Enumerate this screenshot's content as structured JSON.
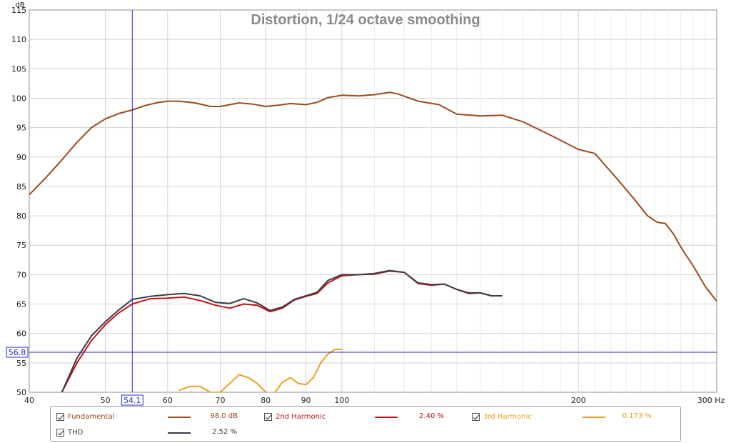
{
  "chart_data": {
    "type": "line",
    "title": "Distortion, 1/24 octave smoothing",
    "xlabel": "Hz",
    "ylabel": "dB",
    "xscale": "log",
    "xlim": [
      40,
      300
    ],
    "ylim": [
      50,
      115
    ],
    "x_ticks": [
      40,
      50,
      60,
      70,
      80,
      90,
      100,
      200,
      300
    ],
    "x_tick_labels": [
      "40",
      "50",
      "60",
      "70",
      "80",
      "90",
      "100",
      "200",
      "300 Hz"
    ],
    "y_ticks": [
      50,
      55,
      60,
      65,
      70,
      75,
      80,
      85,
      90,
      95,
      100,
      105,
      110,
      115
    ],
    "grid": true,
    "cursor": {
      "x": 54.1,
      "y": 56.8,
      "x_label": "54.1",
      "y_label": "56.8"
    },
    "series": [
      {
        "name": "Fundamental",
        "color": "#9b4a1c",
        "legend_value": "98.0 dB",
        "points": [
          [
            40,
            83.6
          ],
          [
            42,
            86.5
          ],
          [
            44,
            89.5
          ],
          [
            46,
            92.5
          ],
          [
            48,
            95
          ],
          [
            50,
            96.5
          ],
          [
            52,
            97.4
          ],
          [
            54.1,
            98
          ],
          [
            56,
            98.7
          ],
          [
            58,
            99.2
          ],
          [
            60,
            99.5
          ],
          [
            62,
            99.5
          ],
          [
            65,
            99.2
          ],
          [
            68,
            98.6
          ],
          [
            70,
            98.6
          ],
          [
            74,
            99.2
          ],
          [
            77,
            99
          ],
          [
            80,
            98.6
          ],
          [
            83,
            98.8
          ],
          [
            86,
            99.1
          ],
          [
            90,
            98.9
          ],
          [
            93,
            99.3
          ],
          [
            96,
            100.1
          ],
          [
            100,
            100.5
          ],
          [
            105,
            100.4
          ],
          [
            110,
            100.6
          ],
          [
            115,
            101
          ],
          [
            118,
            100.7
          ],
          [
            125,
            99.5
          ],
          [
            133,
            98.9
          ],
          [
            140,
            97.3
          ],
          [
            150,
            97.0
          ],
          [
            160,
            97.1
          ],
          [
            170,
            96
          ],
          [
            185,
            93.6
          ],
          [
            200,
            91.3
          ],
          [
            210,
            90.6
          ],
          [
            215,
            89
          ],
          [
            225,
            86
          ],
          [
            235,
            83
          ],
          [
            245,
            80
          ],
          [
            252,
            78.9
          ],
          [
            258,
            78.7
          ],
          [
            264,
            77
          ],
          [
            272,
            74
          ],
          [
            280,
            71.5
          ],
          [
            290,
            68
          ],
          [
            300,
            65.5
          ]
        ]
      },
      {
        "name": "2nd Harmonic",
        "color": "#c81414",
        "legend_value": "2.40 %",
        "points": [
          [
            44,
            50
          ],
          [
            46,
            55
          ],
          [
            48,
            58.8
          ],
          [
            50,
            61.5
          ],
          [
            52,
            63.5
          ],
          [
            54.1,
            65
          ],
          [
            57,
            65.9
          ],
          [
            60,
            66
          ],
          [
            63,
            66.2
          ],
          [
            66,
            65.6
          ],
          [
            69,
            64.8
          ],
          [
            72,
            64.3
          ],
          [
            75,
            65
          ],
          [
            78,
            64.8
          ],
          [
            81,
            63.7
          ],
          [
            84,
            64.3
          ],
          [
            87,
            65.7
          ],
          [
            90,
            66.3
          ],
          [
            93,
            66.8
          ],
          [
            96,
            68.6
          ],
          [
            100,
            69.8
          ],
          [
            105,
            70
          ],
          [
            110,
            70.1
          ],
          [
            115,
            70.6
          ],
          [
            120,
            70.4
          ],
          [
            125,
            68.5
          ],
          [
            130,
            68.2
          ],
          [
            135,
            68.4
          ],
          [
            140,
            67.5
          ],
          [
            145,
            66.8
          ],
          [
            150,
            66.9
          ],
          [
            155,
            66.4
          ],
          [
            160,
            66.4
          ]
        ]
      },
      {
        "name": "3rd Harmonic",
        "color": "#eba020",
        "legend_value": "0.173 %",
        "points": [
          [
            62,
            50.3
          ],
          [
            64,
            51
          ],
          [
            66,
            51
          ],
          [
            68,
            50
          ],
          [
            70,
            50
          ],
          [
            72,
            51.5
          ],
          [
            74,
            53
          ],
          [
            76,
            52.5
          ],
          [
            78,
            51.5
          ],
          [
            80,
            50
          ],
          [
            82,
            49.8
          ],
          [
            84,
            51.7
          ],
          [
            86,
            52.5
          ],
          [
            88,
            51.5
          ],
          [
            90,
            51.3
          ],
          [
            92,
            52.5
          ],
          [
            94,
            55
          ],
          [
            96,
            56.5
          ],
          [
            98,
            57.3
          ],
          [
            100,
            57.3
          ]
        ]
      },
      {
        "name": "THD",
        "color": "#3b3b48",
        "legend_value": "2.52 %",
        "points": [
          [
            44,
            50
          ],
          [
            46,
            55.8
          ],
          [
            48,
            59.6
          ],
          [
            50,
            62
          ],
          [
            52,
            64
          ],
          [
            54.1,
            65.8
          ],
          [
            57,
            66.3
          ],
          [
            60,
            66.6
          ],
          [
            63,
            66.8
          ],
          [
            66,
            66.4
          ],
          [
            69,
            65.3
          ],
          [
            72,
            65.1
          ],
          [
            75,
            65.9
          ],
          [
            78,
            65.2
          ],
          [
            81,
            63.9
          ],
          [
            84,
            64.5
          ],
          [
            87,
            65.8
          ],
          [
            90,
            66.4
          ],
          [
            93,
            67
          ],
          [
            96,
            69
          ],
          [
            100,
            70
          ],
          [
            105,
            70
          ],
          [
            110,
            70.2
          ],
          [
            115,
            70.7
          ],
          [
            120,
            70.4
          ],
          [
            125,
            68.6
          ],
          [
            130,
            68.3
          ],
          [
            135,
            68.4
          ],
          [
            140,
            67.5
          ],
          [
            145,
            66.9
          ],
          [
            150,
            66.9
          ],
          [
            155,
            66.4
          ],
          [
            160,
            66.4
          ]
        ]
      }
    ]
  }
}
